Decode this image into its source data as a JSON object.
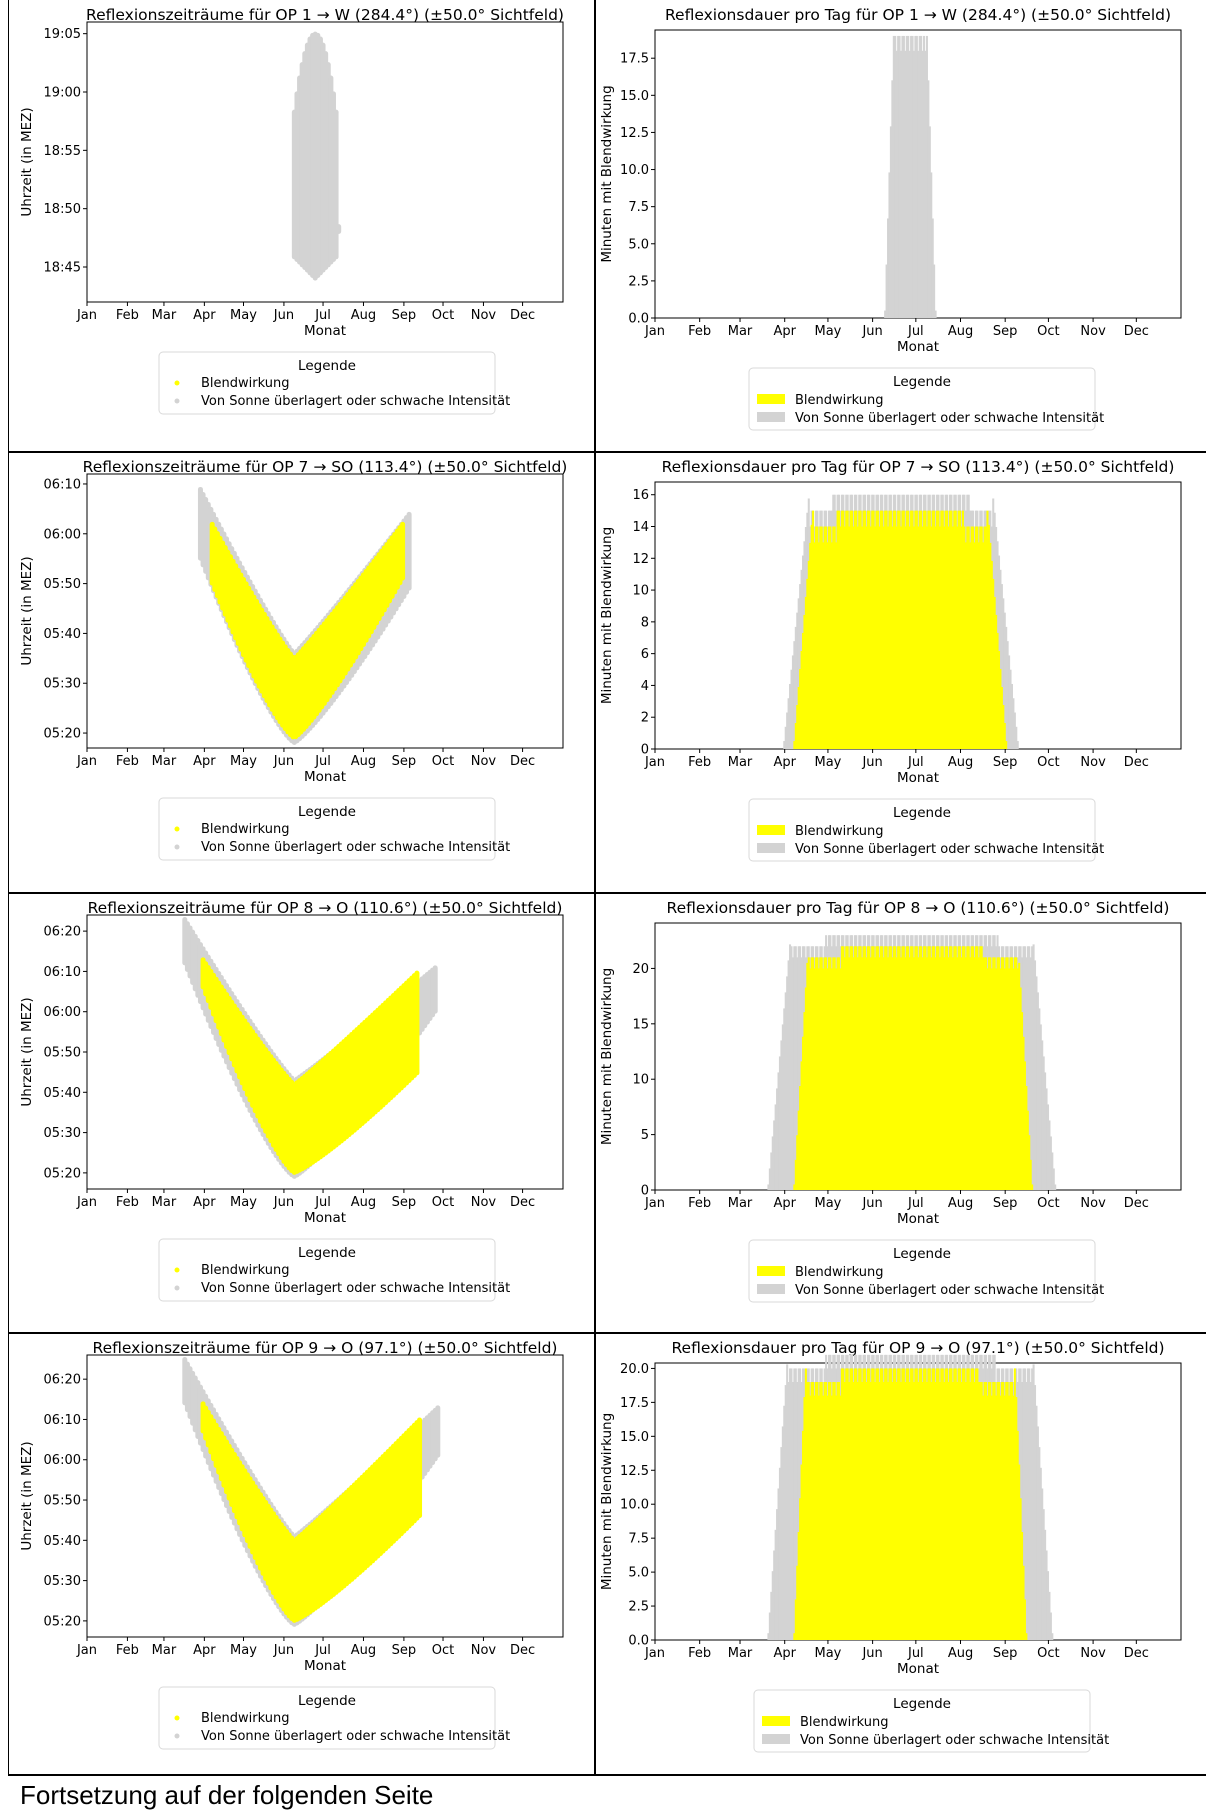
{
  "common": {
    "months": [
      "Jan",
      "Feb",
      "Mar",
      "Apr",
      "May",
      "Jun",
      "Jul",
      "Aug",
      "Sep",
      "Oct",
      "Nov",
      "Dec"
    ],
    "xlabel": "Monat",
    "ylabel_time": "Uhrzeit (in MEZ)",
    "ylabel_duration": "Minuten mit Blendwirkung",
    "legend_title": "Legende",
    "legend_glare": "Blendwirkung",
    "legend_overlay": "Von Sonne überlagert oder schwache Intensität",
    "colors": {
      "glare": "#ffff00",
      "overlay": "#d3d3d3"
    }
  },
  "footer_text": "Fortsetzung auf der folgenden Seite",
  "chart_data": [
    {
      "type": "scatter",
      "title": "Reflexionszeiträume für OP 1 → W (284.4°) (±50.0° Sichtfeld)",
      "xlabel": "Monat",
      "ylabel": "Uhrzeit (in MEZ)",
      "yticks": [
        "18:45",
        "18:50",
        "18:55",
        "19:00",
        "19:05"
      ],
      "ylim_minutes": [
        1122,
        1146
      ],
      "band": {
        "overlay": {
          "start_doy": 160,
          "end_doy": 195,
          "peak_doy": 176,
          "lo_min": 1124,
          "hi_min": 1145,
          "end_lo": 1128,
          "end_hi": 1128,
          "start_lo": 1124,
          "start_hi": 1124
        }
      },
      "legend": [
        "Blendwirkung",
        "Von Sonne überlagert oder schwache Intensität"
      ]
    },
    {
      "type": "bar",
      "title": "Reflexionsdauer pro Tag für OP 1 → W (284.4°) (±50.0° Sichtfeld)",
      "xlabel": "Monat",
      "ylabel": "Minuten mit Blendwirkung",
      "yticks": [
        "0.0",
        "2.5",
        "5.0",
        "7.5",
        "10.0",
        "12.5",
        "15.0",
        "17.5"
      ],
      "ylim": [
        0,
        19.4
      ],
      "ytick_step": 2.5,
      "series": {
        "overlay": {
          "start_doy": 160,
          "end_doy": 195,
          "peak": 19,
          "shape": 0.35
        }
      },
      "legend": [
        "Blendwirkung",
        "Von Sonne überlagert oder schwache Intensität"
      ]
    },
    {
      "type": "scatter",
      "title": "Reflexionszeiträume für OP 7 → SO (113.4°) (±50.0° Sichtfeld)",
      "xlabel": "Monat",
      "ylabel": "Uhrzeit (in MEZ)",
      "yticks": [
        "05:20",
        "05:30",
        "05:40",
        "05:50",
        "06:00",
        "06:10"
      ],
      "ylim_minutes": [
        317,
        372
      ],
      "band": {
        "overlay": {
          "start_doy": 88,
          "end_doy": 248,
          "min_doy": 160,
          "lo_min": 318,
          "hi_min": 336,
          "start_lo": 355,
          "start_hi": 369,
          "end_lo": 349,
          "end_hi": 364
        },
        "glare": {
          "start_doy": 97,
          "end_doy": 243,
          "min_doy": 160,
          "lo_min": 319,
          "hi_min": 335,
          "start_lo": 350,
          "start_hi": 362,
          "end_lo": 351,
          "end_hi": 362
        }
      },
      "legend": [
        "Blendwirkung",
        "Von Sonne überlagert oder schwache Intensität"
      ]
    },
    {
      "type": "bar",
      "title": "Reflexionsdauer pro Tag für OP 7 → SO (113.4°) (±50.0° Sichtfeld)",
      "xlabel": "Monat",
      "ylabel": "Minuten mit Blendwirkung",
      "yticks": [
        "0",
        "2",
        "4",
        "6",
        "8",
        "10",
        "12",
        "14",
        "16"
      ],
      "ylim": [
        0,
        16.8
      ],
      "ytick_step": 2,
      "series": {
        "overlay": {
          "start_doy": 90,
          "end_doy": 252,
          "peak": 16,
          "shape": 0.22
        },
        "glare": {
          "start_doy": 97,
          "end_doy": 244,
          "peak": 15,
          "shape": 0.18
        }
      },
      "legend": [
        "Blendwirkung",
        "Von Sonne überlagert oder schwache Intensität"
      ]
    },
    {
      "type": "scatter",
      "title": "Reflexionszeiträume für OP 8 → O (110.6°) (±50.0° Sichtfeld)",
      "xlabel": "Monat",
      "ylabel": "Uhrzeit (in MEZ)",
      "yticks": [
        "05:20",
        "05:30",
        "05:40",
        "05:50",
        "06:00",
        "06:10",
        "06:20"
      ],
      "ylim_minutes": [
        316,
        384
      ],
      "band": {
        "overlay": {
          "start_doy": 76,
          "end_doy": 268,
          "min_doy": 160,
          "lo_min": 319,
          "hi_min": 343,
          "start_lo": 372,
          "start_hi": 383,
          "end_lo": 360,
          "end_hi": 371
        },
        "glare": {
          "start_doy": 90,
          "end_doy": 255,
          "min_doy": 160,
          "lo_min": 320,
          "hi_min": 342,
          "start_lo": 366,
          "start_hi": 373,
          "end_lo": 345,
          "end_hi": 370
        }
      },
      "legend": [
        "Blendwirkung",
        "Von Sonne überlagert oder schwache Intensität"
      ]
    },
    {
      "type": "bar",
      "title": "Reflexionsdauer pro Tag für OP 8 → O (110.6°) (±50.0° Sichtfeld)",
      "xlabel": "Monat",
      "ylabel": "Minuten mit Blendwirkung",
      "yticks": [
        "0",
        "5",
        "10",
        "15",
        "20"
      ],
      "ylim": [
        0,
        24.1
      ],
      "ytick_step": 5,
      "series": {
        "overlay": {
          "start_doy": 79,
          "end_doy": 278,
          "peak": 23,
          "shape": 0.16
        },
        "glare": {
          "start_doy": 97,
          "end_doy": 262,
          "peak": 22,
          "shape": 0.12
        }
      },
      "legend": [
        "Blendwirkung",
        "Von Sonne überlagert oder schwache Intensität"
      ]
    },
    {
      "type": "scatter",
      "title": "Reflexionszeiträume für OP 9 → O (97.1°) (±50.0° Sichtfeld)",
      "xlabel": "Monat",
      "ylabel": "Uhrzeit (in MEZ)",
      "yticks": [
        "05:20",
        "05:30",
        "05:40",
        "05:50",
        "06:00",
        "06:10",
        "06:20"
      ],
      "ylim_minutes": [
        316,
        386
      ],
      "band": {
        "overlay": {
          "start_doy": 76,
          "end_doy": 270,
          "min_doy": 160,
          "lo_min": 319,
          "hi_min": 341,
          "start_lo": 374,
          "start_hi": 385,
          "end_lo": 361,
          "end_hi": 373
        },
        "glare": {
          "start_doy": 90,
          "end_doy": 256,
          "min_doy": 160,
          "lo_min": 320,
          "hi_min": 340,
          "start_lo": 367,
          "start_hi": 374,
          "end_lo": 346,
          "end_hi": 370
        }
      },
      "legend": [
        "Blendwirkung",
        "Von Sonne überlagert oder schwache Intensität"
      ]
    },
    {
      "type": "bar",
      "title": "Reflexionsdauer pro Tag für OP 9 → O (97.1°) (±50.0° Sichtfeld)",
      "xlabel": "Monat",
      "ylabel": "Minuten mit Blendwirkung",
      "yticks": [
        "0.0",
        "2.5",
        "5.0",
        "7.5",
        "10.0",
        "12.5",
        "15.0",
        "17.5",
        "20.0"
      ],
      "ylim": [
        0,
        20.4
      ],
      "ytick_step": 2.5,
      "series": {
        "overlay": {
          "start_doy": 79,
          "end_doy": 276,
          "peak": 21,
          "shape": 0.14
        },
        "glare": {
          "start_doy": 97,
          "end_doy": 258,
          "peak": 20,
          "shape": 0.1
        }
      },
      "legend": [
        "Blendwirkung",
        "Von Sonne überlagert oder schwache Intensität"
      ]
    }
  ]
}
